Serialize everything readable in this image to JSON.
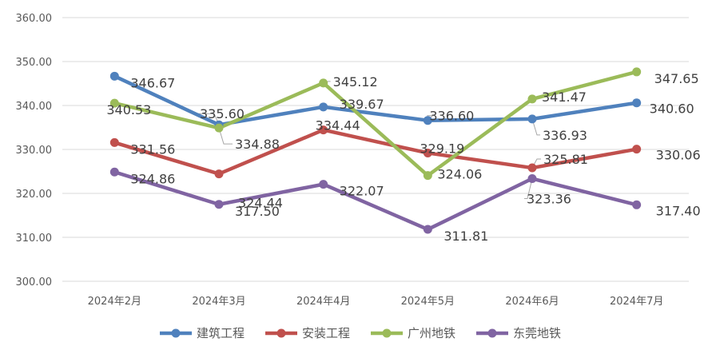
{
  "chart_data": {
    "type": "line",
    "categories": [
      "2024年2月",
      "2024年3月",
      "2024年4月",
      "2024年5月",
      "2024年6月",
      "2024年7月"
    ],
    "ylim": [
      300,
      360
    ],
    "yticks": [
      "300.00",
      "310.00",
      "320.00",
      "330.00",
      "340.00",
      "350.00",
      "360.00"
    ],
    "grid": true,
    "legend_position": "bottom",
    "series": [
      {
        "name": "建筑工程",
        "color": "#4f81bd",
        "values": [
          346.67,
          335.6,
          339.67,
          336.6,
          336.93,
          340.6
        ],
        "labels": [
          "346.67",
          "335.60",
          "339.67",
          "336.60",
          "336.93",
          "340.60"
        ]
      },
      {
        "name": "安装工程",
        "color": "#c0504d",
        "values": [
          331.56,
          324.44,
          334.44,
          329.19,
          325.81,
          330.06
        ],
        "labels": [
          "331.56",
          "324.44",
          "334.44",
          "329.19",
          "325.81",
          "330.06"
        ]
      },
      {
        "name": "广州地铁",
        "color": "#9bbb59",
        "values": [
          340.53,
          334.88,
          345.12,
          324.06,
          341.47,
          347.65
        ],
        "labels": [
          "340.53",
          "334.88",
          "345.12",
          "324.06",
          "341.47",
          "347.65"
        ]
      },
      {
        "name": "东莞地铁",
        "color": "#8064a2",
        "values": [
          324.86,
          317.5,
          322.07,
          311.81,
          323.36,
          317.4
        ],
        "labels": [
          "324.86",
          "317.50",
          "322.07",
          "311.81",
          "323.36",
          "317.40"
        ]
      }
    ]
  }
}
